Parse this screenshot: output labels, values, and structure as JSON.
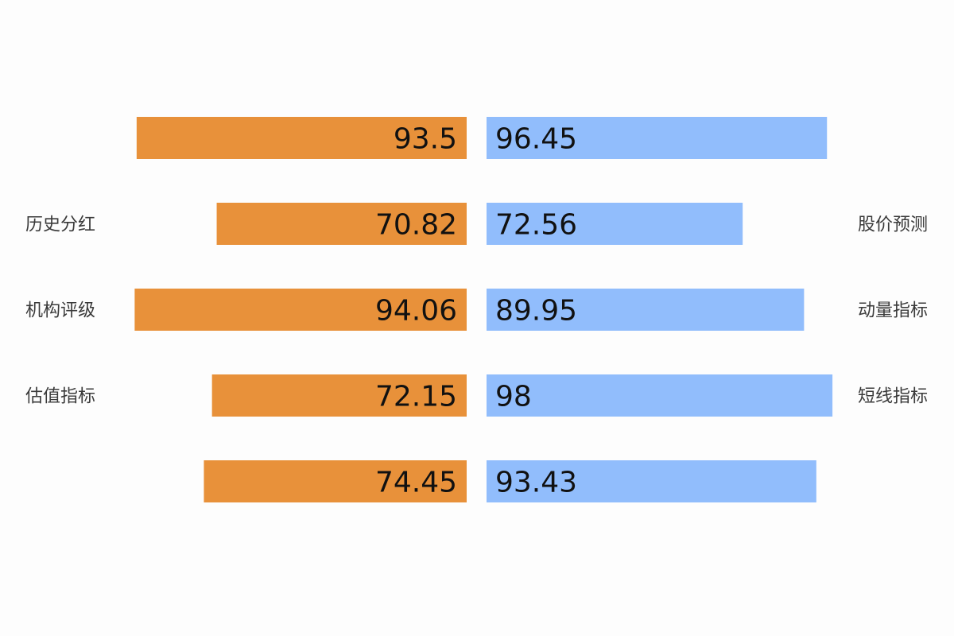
{
  "chart_data": {
    "type": "bar",
    "orientation": "horizontal-diverging",
    "title": "",
    "xlabel": "",
    "ylabel": "",
    "xlim": [
      0,
      100
    ],
    "grid": false,
    "legend": "none",
    "left_labels": [
      "",
      "历史分红",
      "机构评级",
      "估值指标",
      ""
    ],
    "right_labels": [
      "",
      "股价预测",
      "动量指标",
      "短线指标",
      ""
    ],
    "series": [
      {
        "side": "left",
        "color": "#e8913a",
        "values": [
          93.5,
          70.82,
          94.06,
          72.15,
          74.45
        ],
        "labels": [
          "93.5",
          "70.82",
          "94.06",
          "72.15",
          "74.45"
        ]
      },
      {
        "side": "right",
        "color": "#91bdfc",
        "values": [
          96.45,
          72.56,
          89.95,
          98,
          93.43
        ],
        "labels": [
          "96.45",
          "72.56",
          "89.95",
          "98",
          "93.43"
        ]
      }
    ]
  }
}
